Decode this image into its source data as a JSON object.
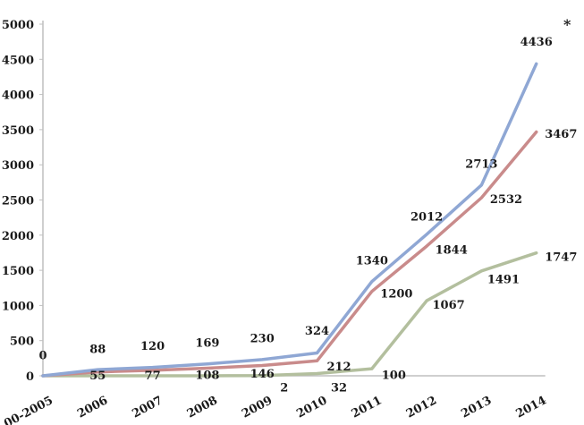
{
  "chart_data": {
    "type": "line",
    "title": "",
    "xlabel": "",
    "ylabel": "",
    "categories": [
      "00-2005",
      "2006",
      "2007",
      "2008",
      "2009",
      "2010",
      "2011",
      "2012",
      "2013",
      "2014"
    ],
    "y_ticks": [
      "0",
      "500",
      "1000",
      "1500",
      "2000",
      "2500",
      "3000",
      "3500",
      "4000",
      "4500",
      "5000"
    ],
    "ylim": [
      0,
      5000
    ],
    "grid": false,
    "legend": "none",
    "series": [
      {
        "color": "#8fa7d4",
        "values": [
          0,
          88,
          120,
          169,
          230,
          324,
          1340,
          2012,
          2713,
          4436
        ]
      },
      {
        "color": "#c98b8b",
        "values": [
          0,
          55,
          77,
          108,
          146,
          212,
          1200,
          1844,
          2532,
          3467
        ]
      },
      {
        "color": "#b3bf9e",
        "values": [
          0,
          0,
          0,
          0,
          2,
          32,
          100,
          1067,
          1491,
          1747
        ]
      }
    ],
    "data_labels": [
      {
        "text": "0",
        "cat": 0,
        "y": 300
      },
      {
        "text": "88",
        "cat": 1,
        "y": 390
      },
      {
        "text": "120",
        "cat": 2,
        "y": 430
      },
      {
        "text": "169",
        "cat": 3,
        "y": 480
      },
      {
        "text": "230",
        "cat": 4,
        "y": 540
      },
      {
        "text": "324",
        "cat": 5,
        "y": 650
      },
      {
        "text": "1340",
        "cat": 6,
        "y": 1650
      },
      {
        "text": "2012",
        "cat": 7,
        "y": 2270
      },
      {
        "text": "2713",
        "cat": 8,
        "y": 3020
      },
      {
        "text": "4436",
        "cat": 9,
        "y": 4760
      },
      {
        "text": "55",
        "cat": 1,
        "y": 10
      },
      {
        "text": "77",
        "cat": 2,
        "y": 10
      },
      {
        "text": "108",
        "cat": 3,
        "y": 20
      },
      {
        "text": "146",
        "cat": 4,
        "y": 40
      },
      {
        "text": "212",
        "cat": 5.4,
        "y": 140
      },
      {
        "text": "1200",
        "cat": 6.45,
        "y": 1180
      },
      {
        "text": "1844",
        "cat": 7.45,
        "y": 1800
      },
      {
        "text": "2532",
        "cat": 8.45,
        "y": 2520
      },
      {
        "text": "3467",
        "cat": 9.45,
        "y": 3450
      },
      {
        "text": "2",
        "cat": 4.4,
        "y": -160
      },
      {
        "text": "32",
        "cat": 5.4,
        "y": -160
      },
      {
        "text": "100",
        "cat": 6.4,
        "y": 20
      },
      {
        "text": "1067",
        "cat": 7.4,
        "y": 1020
      },
      {
        "text": "1491",
        "cat": 8.4,
        "y": 1380
      },
      {
        "text": "1747",
        "cat": 9.45,
        "y": 1700
      }
    ],
    "annotation": "*"
  }
}
